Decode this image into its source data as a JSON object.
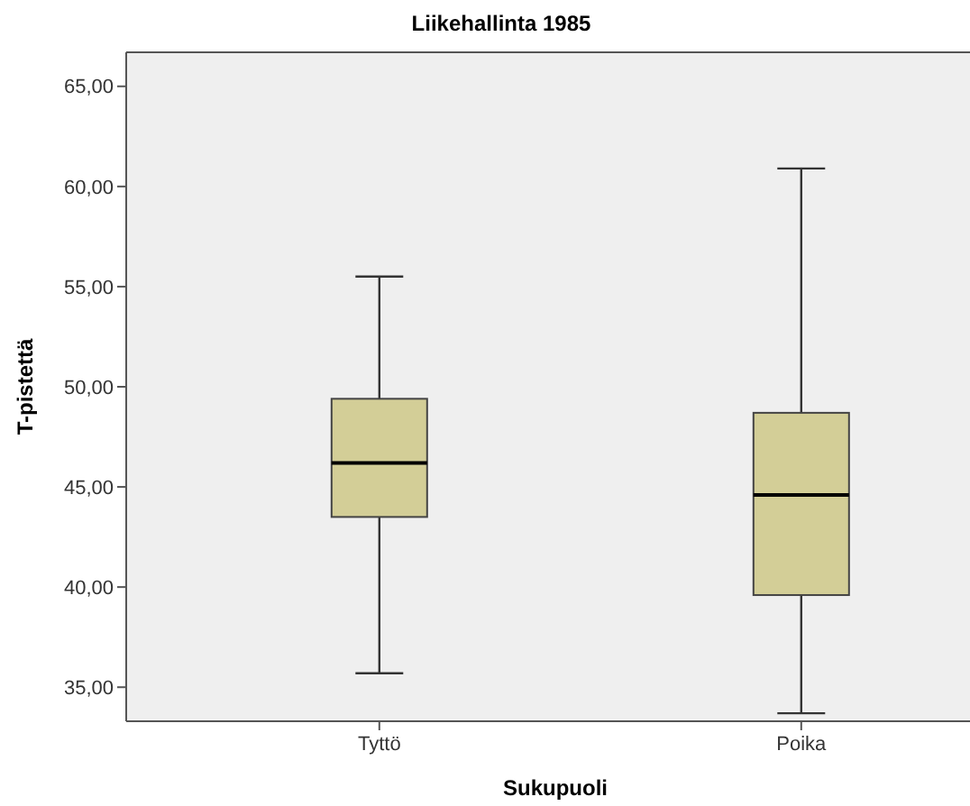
{
  "chart_data": {
    "type": "box",
    "title": "Liikehallinta 1985",
    "xlabel": "Sukupuoli",
    "ylabel": "T-pistettä",
    "categories": [
      "Tyttö",
      "Poika"
    ],
    "color": "#d3ce97",
    "boxes": [
      {
        "low": 35.7,
        "q1": 43.5,
        "median": 46.2,
        "q3": 49.4,
        "high": 55.5
      },
      {
        "low": 33.7,
        "q1": 39.6,
        "median": 44.6,
        "q3": 48.7,
        "high": 60.9
      }
    ],
    "ylim": [
      33.3,
      66.7
    ],
    "yticks": [
      {
        "value": 35,
        "label": "35,00"
      },
      {
        "value": 40,
        "label": "40,00"
      },
      {
        "value": 45,
        "label": "45,00"
      },
      {
        "value": 50,
        "label": "50,00"
      },
      {
        "value": 55,
        "label": "55,00"
      },
      {
        "value": 60,
        "label": "60,00"
      },
      {
        "value": 65,
        "label": "65,00"
      }
    ],
    "grid": false
  }
}
